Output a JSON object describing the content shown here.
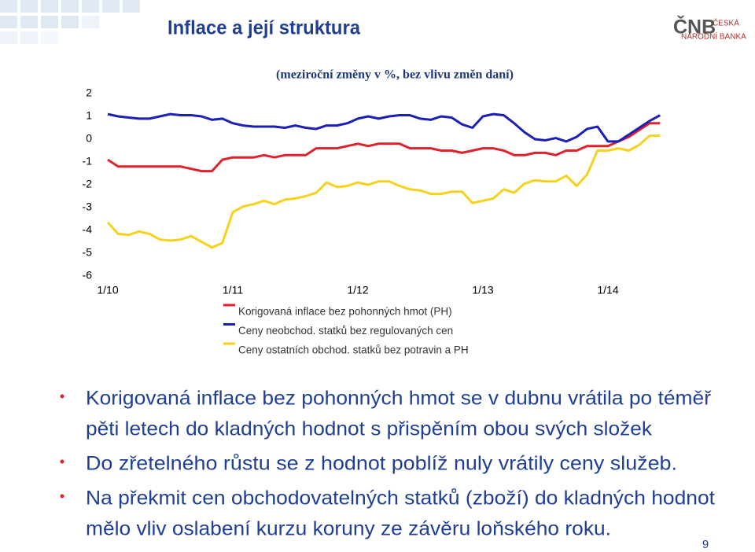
{
  "title": "Inflace a její struktura",
  "logo": {
    "abbr": "ČNB",
    "name": [
      "ČESKÁ",
      "NÁRODNÍ BANKA"
    ]
  },
  "chart_data": {
    "type": "line",
    "subtitle": "(meziroční změny v %, bez vlivu změn daní)",
    "categories": [
      "1/10",
      null,
      null,
      null,
      null,
      null,
      null,
      null,
      null,
      null,
      null,
      null,
      "1/11",
      null,
      null,
      null,
      null,
      null,
      null,
      null,
      null,
      null,
      null,
      null,
      "1/12",
      null,
      null,
      null,
      null,
      null,
      null,
      null,
      null,
      null,
      null,
      null,
      "1/13",
      null,
      null,
      null,
      null,
      null,
      null,
      null,
      null,
      null,
      null,
      null,
      "1/14",
      null,
      null,
      null,
      null,
      null
    ],
    "ylim": [
      -6,
      2
    ],
    "yticks": [
      -6,
      -5,
      -4,
      -3,
      -2,
      -1,
      0,
      1,
      2
    ],
    "grid": false,
    "series": [
      {
        "name": "Korigovaná inflace bez pohonných hmot (PH)",
        "color": "#e0202a",
        "values": [
          -0.9,
          -1.2,
          -1.2,
          -1.2,
          -1.2,
          -1.2,
          -1.2,
          -1.2,
          -1.3,
          -1.4,
          -1.4,
          -0.9,
          -0.8,
          -0.8,
          -0.8,
          -0.7,
          -0.8,
          -0.7,
          -0.7,
          -0.7,
          -0.4,
          -0.4,
          -0.4,
          -0.3,
          -0.2,
          -0.3,
          -0.2,
          -0.2,
          -0.2,
          -0.4,
          -0.4,
          -0.4,
          -0.5,
          -0.5,
          -0.6,
          -0.5,
          -0.4,
          -0.4,
          -0.5,
          -0.7,
          -0.7,
          -0.6,
          -0.6,
          -0.7,
          -0.5,
          -0.5,
          -0.3,
          -0.3,
          -0.3,
          -0.1,
          0.1,
          0.4,
          0.7,
          0.7
        ]
      },
      {
        "name": "Ceny neobchod. statků bez regulovaných cen",
        "color": "#1a1fb5",
        "values": [
          1.1,
          1.0,
          0.95,
          0.9,
          0.9,
          1.0,
          1.1,
          1.05,
          1.05,
          1.0,
          0.85,
          0.9,
          0.7,
          0.6,
          0.55,
          0.55,
          0.55,
          0.5,
          0.6,
          0.5,
          0.45,
          0.6,
          0.6,
          0.7,
          0.9,
          1.0,
          0.9,
          1.0,
          1.05,
          1.05,
          0.9,
          0.85,
          1.0,
          0.95,
          0.65,
          0.5,
          1.0,
          1.1,
          1.05,
          0.7,
          0.3,
          0.0,
          -0.05,
          0.05,
          -0.1,
          0.1,
          0.45,
          0.55,
          -0.1,
          -0.1,
          0.2,
          0.5,
          0.8,
          1.05
        ]
      },
      {
        "name": "Ceny ostatních obchod. statků bez potravin a PH",
        "color": "#f5d21e",
        "values": [
          -3.65,
          -4.15,
          -4.2,
          -4.05,
          -4.15,
          -4.4,
          -4.45,
          -4.4,
          -4.25,
          -4.5,
          -4.75,
          -4.55,
          -3.2,
          -2.95,
          -2.85,
          -2.7,
          -2.85,
          -2.65,
          -2.6,
          -2.5,
          -2.35,
          -1.9,
          -2.1,
          -2.05,
          -1.9,
          -2.0,
          -1.85,
          -1.85,
          -2.05,
          -2.2,
          -2.25,
          -2.4,
          -2.4,
          -2.3,
          -2.3,
          -2.8,
          -2.7,
          -2.6,
          -2.2,
          -2.35,
          -1.95,
          -1.8,
          -1.85,
          -1.85,
          -1.6,
          -2.05,
          -1.55,
          -0.5,
          -0.5,
          -0.4,
          -0.5,
          -0.25,
          0.15,
          0.15
        ]
      }
    ]
  },
  "bullets": [
    {
      "lines": [
        "Korigovaná inflace bez pohonných hmot se v dubnu vrátila po téměř",
        "pěti letech do kladných hodnot s přispěním obou svých složek"
      ]
    },
    {
      "lines": [
        "Do zřetelného  růstu se z hodnot poblíž nuly vrátily ceny služeb."
      ]
    },
    {
      "lines": [
        "Na překmit cen obchodovatelných statků (zboží) do kladných hodnot",
        "mělo vliv oslabení kurzu koruny ze závěru loňského roku."
      ]
    }
  ],
  "page_number": "9"
}
